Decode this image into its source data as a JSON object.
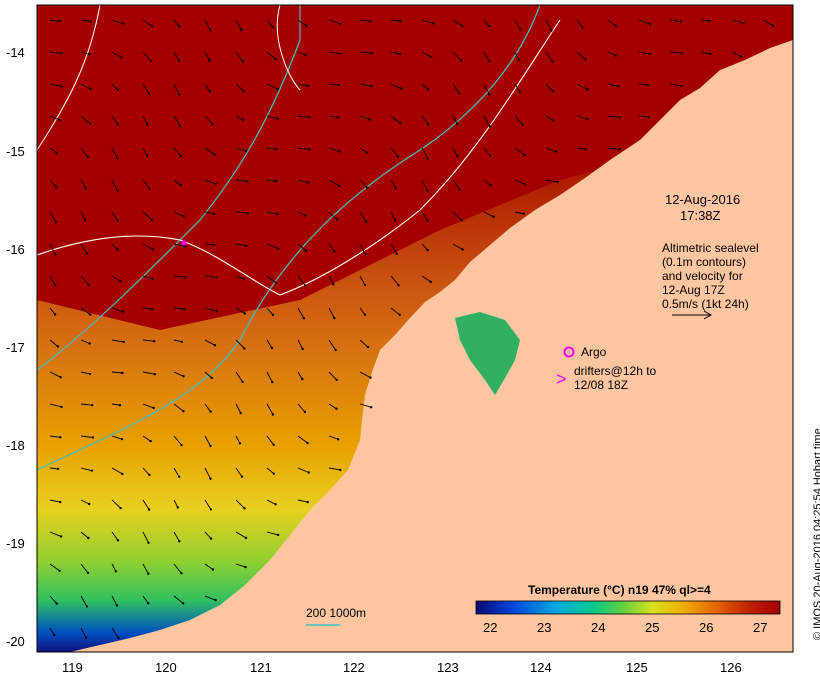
{
  "map": {
    "lat_ticks": [
      "-14",
      "-15",
      "-16",
      "-17",
      "-18",
      "-19",
      "-20"
    ],
    "lon_ticks": [
      "119",
      "120",
      "121",
      "122",
      "123",
      "124",
      "125",
      "126"
    ],
    "timestamp_date": "12-Aug-2016",
    "timestamp_time": "17:38Z",
    "altimetry_note": [
      "Altimetric sealevel",
      "(0.1m contours)",
      "and velocity for",
      "12-Aug 17Z",
      "0.5m/s (1kt 24h)"
    ],
    "argo_label": "Argo",
    "drifters_label_1": "drifters@12h to",
    "drifters_label_2": "12/08 18Z",
    "isobath_label": "200  1000m",
    "credit": "© IMOS 20-Aug-2016 04:25:54 Hobart time",
    "colors": {
      "land": "#fdc6a0",
      "hot": "#a50000",
      "argo": "#ff00ff",
      "isobath": "#40c0c0"
    }
  },
  "colorbar": {
    "title": "Temperature (°C) n19 47% ql>=4",
    "ticks": [
      "22",
      "23",
      "24",
      "25",
      "26",
      "27"
    ],
    "colors": [
      "#08086e",
      "#0044dd",
      "#00a8e0",
      "#00c890",
      "#60d040",
      "#d8e020",
      "#f0b000",
      "#e06000",
      "#c02000",
      "#a00000"
    ]
  }
}
